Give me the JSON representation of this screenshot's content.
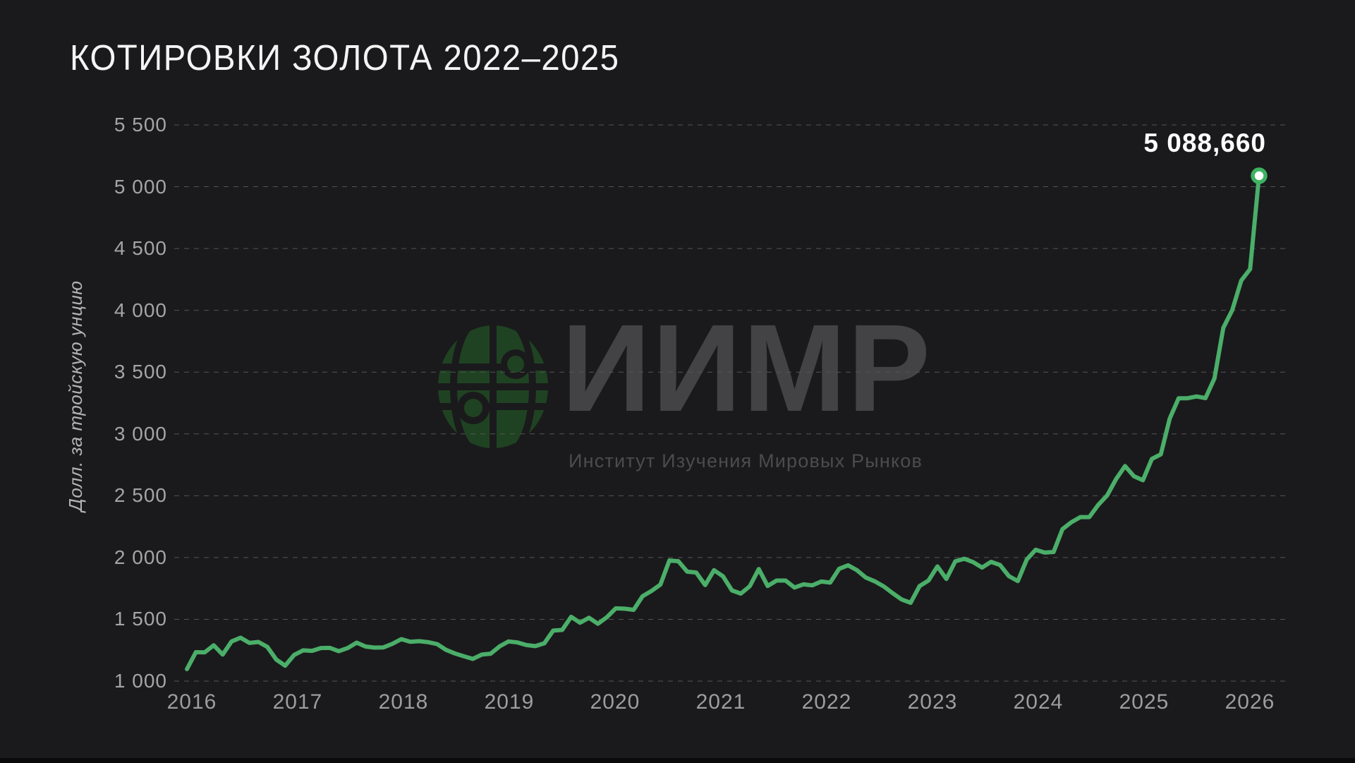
{
  "title": "Котировки золота 2022–2025",
  "watermark": {
    "acronym": "ИИМР",
    "subtitle": "Институт Изучения Мировых Рынков",
    "globe_icon": "globe-network-icon",
    "globe_color": "#1f4322",
    "text_color": "#434345"
  },
  "colors": {
    "background": "#1a1a1c",
    "line": "#4bae69",
    "marker_ring": "#3eb261",
    "marker_fill": "#ffffff",
    "gridline": "#545454",
    "tick_text": "#a5a5a5",
    "title_text": "#f4f4f4",
    "annotation_text": "#ffffff",
    "bottom_bar": "#0a0a0a"
  },
  "chart_data": {
    "type": "line",
    "title": "Котировки золота 2022–2025",
    "xlabel": "",
    "ylabel": "Долл. за тройскую унцию",
    "grid": "horizontal dashed",
    "legend": "none",
    "ylim": [
      1000,
      5500
    ],
    "xlim_years": [
      2016,
      2026
    ],
    "y_ticks": [
      {
        "label": "5 500",
        "value": 5500
      },
      {
        "label": "5 000",
        "value": 5000
      },
      {
        "label": "4 500",
        "value": 4500
      },
      {
        "label": "4 000",
        "value": 4000
      },
      {
        "label": "3 500",
        "value": 3500
      },
      {
        "label": "3 000",
        "value": 3000
      },
      {
        "label": "2 500",
        "value": 2500
      },
      {
        "label": "2 000",
        "value": 2000
      },
      {
        "label": "1 500",
        "value": 1500
      },
      {
        "label": "1 000",
        "value": 1000
      }
    ],
    "x_ticks": [
      {
        "label": "2016",
        "value": 2016
      },
      {
        "label": "2017",
        "value": 2017
      },
      {
        "label": "2018",
        "value": 2018
      },
      {
        "label": "2019",
        "value": 2019
      },
      {
        "label": "2020",
        "value": 2020
      },
      {
        "label": "2021",
        "value": 2021
      },
      {
        "label": "2022",
        "value": 2022
      },
      {
        "label": "2023",
        "value": 2023
      },
      {
        "label": "2024",
        "value": 2024
      },
      {
        "label": "2025",
        "value": 2025
      },
      {
        "label": "2026",
        "value": 2026
      }
    ],
    "series": [
      {
        "name": "Котировки золота, долл. за тройскую унцию",
        "x_start": "2016-01",
        "x_interval": "monthly",
        "values": [
          1097,
          1234,
          1233,
          1290,
          1215,
          1321,
          1351,
          1309,
          1317,
          1277,
          1174,
          1125,
          1212,
          1249,
          1245,
          1268,
          1269,
          1242,
          1268,
          1311,
          1280,
          1271,
          1273,
          1302,
          1340,
          1318,
          1323,
          1315,
          1300,
          1253,
          1224,
          1201,
          1180,
          1215,
          1222,
          1281,
          1321,
          1313,
          1292,
          1283,
          1306,
          1409,
          1414,
          1520,
          1472,
          1513,
          1464,
          1517,
          1589,
          1586,
          1577,
          1687,
          1730,
          1781,
          1976,
          1970,
          1886,
          1879,
          1777,
          1898,
          1848,
          1734,
          1708,
          1768,
          1907,
          1770,
          1814,
          1814,
          1757,
          1783,
          1775,
          1806,
          1797,
          1909,
          1937,
          1897,
          1837,
          1807,
          1766,
          1711,
          1661,
          1634,
          1769,
          1814,
          1928,
          1827,
          1969,
          1990,
          1963,
          1919,
          1965,
          1940,
          1849,
          1810,
          1984,
          2063,
          2040,
          2045,
          2230,
          2286,
          2327,
          2327,
          2426,
          2503,
          2635,
          2740,
          2657,
          2625,
          2798,
          2835,
          3124,
          3289,
          3289,
          3303,
          3290,
          3448,
          3858,
          4002,
          4240,
          4334,
          5088.66
        ]
      }
    ],
    "last_point": {
      "x": "2026-01",
      "value": 5088.66,
      "label": "5 088,660"
    }
  }
}
